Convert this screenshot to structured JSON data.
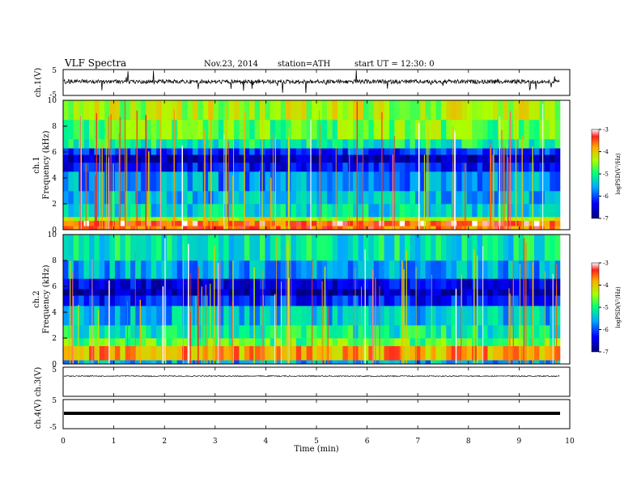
{
  "header": {
    "title": "VLF  Spectra",
    "date": "Nov.23, 2014",
    "station": "station=ATH",
    "start": "start  UT  =    12:30: 0"
  },
  "chart_data": [
    {
      "type": "line",
      "panel": "ch1-waveform",
      "ylabel": "ch.1(V)",
      "ylim": [
        -5,
        5
      ],
      "ytick_labels": [
        "5",
        "-5"
      ],
      "baseline": 0,
      "amplitude": "noisy, ~+/-1 V with spikes to ~-4 V",
      "trace_color": "#000000"
    },
    {
      "type": "heatmap",
      "panel": "ch1-spectrogram",
      "ylabel": "ch.1",
      "ylabel2": "Frequency  (kHz)",
      "ylim": [
        0,
        10
      ],
      "ytick_labels": [
        "0",
        "2",
        "4",
        "6",
        "8",
        "10"
      ],
      "xlim": [
        0,
        9.8
      ],
      "colorbar": {
        "label": "logPSD(V²/Hz)",
        "range": [
          -7,
          -3
        ],
        "ticks": [
          "-3",
          "-4",
          "-5",
          "-6",
          "-7"
        ]
      },
      "bands_khz_logpsd": [
        [
          0,
          0.3,
          -3.6
        ],
        [
          0.3,
          0.7,
          -3.4
        ],
        [
          0.7,
          1.0,
          -4.3
        ],
        [
          1.0,
          2.0,
          -5.3
        ],
        [
          2.0,
          3.0,
          -5.5
        ],
        [
          3.0,
          4.5,
          -5.7
        ],
        [
          4.5,
          5.2,
          -6.3
        ],
        [
          5.2,
          5.8,
          -6.8
        ],
        [
          5.8,
          6.3,
          -6.1
        ],
        [
          6.3,
          7.0,
          -5.1
        ],
        [
          7.0,
          8.5,
          -4.7
        ],
        [
          8.5,
          10.0,
          -4.4
        ]
      ]
    },
    {
      "type": "heatmap",
      "panel": "ch2-spectrogram",
      "ylabel": "ch.2",
      "ylabel2": "Frequency  (kHz)",
      "ylim": [
        0,
        10
      ],
      "ytick_labels": [
        "0",
        "2",
        "4",
        "6",
        "8",
        "10"
      ],
      "xlim": [
        0,
        9.8
      ],
      "colorbar": {
        "label": "logPSD(V²/Hz)",
        "range": [
          -7,
          -3
        ],
        "ticks": [
          "-3",
          "-4",
          "-5",
          "-6",
          "-7"
        ]
      },
      "bands_khz_logpsd": [
        [
          0,
          0.3,
          -5.6
        ],
        [
          0.3,
          1.4,
          -3.8
        ],
        [
          1.4,
          2.0,
          -4.7
        ],
        [
          2.0,
          3.0,
          -5.1
        ],
        [
          3.0,
          4.5,
          -5.5
        ],
        [
          4.5,
          5.3,
          -6.2
        ],
        [
          5.3,
          5.8,
          -6.8
        ],
        [
          5.8,
          6.6,
          -6.5
        ],
        [
          6.6,
          8.0,
          -5.6
        ],
        [
          8.0,
          10.0,
          -5.2
        ]
      ]
    },
    {
      "type": "line",
      "panel": "ch3-waveform",
      "ylabel": "ch.3(V)",
      "ylim": [
        -5,
        5
      ],
      "ytick_labels": [
        "5"
      ],
      "baseline": 0,
      "amplitude": "flat, ~+/-0.1 V",
      "trace_color": "#000000"
    },
    {
      "type": "line",
      "panel": "ch4-waveform",
      "ylabel": "ch.4(V)",
      "ylim": [
        -5,
        5
      ],
      "ytick_labels": [
        "5",
        "-5"
      ],
      "baseline": 0,
      "amplitude": "constant thick line at 0 V",
      "trace_color": "#000000"
    }
  ],
  "x_axis": {
    "label": "Time  (min)",
    "range": [
      0,
      10
    ],
    "tick_labels": [
      "0",
      "1",
      "2",
      "3",
      "4",
      "5",
      "6",
      "7",
      "8",
      "9",
      "10"
    ]
  }
}
